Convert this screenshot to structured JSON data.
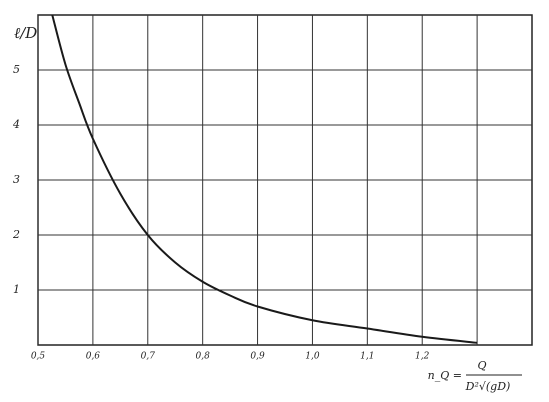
{
  "chart_data": {
    "type": "line",
    "y_label": "ℓ/D",
    "x_label": {
      "left": "n_Q =",
      "numerator": "Q",
      "denominator": "D²√(gD)"
    },
    "x": [
      0.526,
      0.55,
      0.575,
      0.6,
      0.65,
      0.7,
      0.75,
      0.8,
      0.85,
      0.9,
      1.0,
      1.1,
      1.2,
      1.3
    ],
    "series": [
      {
        "color": "#1a1a1a",
        "values": [
          6,
          5.1,
          4.4,
          3.75,
          2.75,
          2.0,
          1.5,
          1.15,
          0.9,
          0.7,
          0.45,
          0.3,
          0.15,
          0.04
        ]
      }
    ],
    "xlim": [
      0.5,
      1.4
    ],
    "ylim": [
      0,
      6
    ],
    "xticks": [
      {
        "value": 0.5,
        "label": "0,5"
      },
      {
        "value": 0.6,
        "label": "0,6"
      },
      {
        "value": 0.7,
        "label": "0,7"
      },
      {
        "value": 0.8,
        "label": "0,8"
      },
      {
        "value": 0.9,
        "label": "0,9"
      },
      {
        "value": 1.0,
        "label": "1,0"
      },
      {
        "value": 1.1,
        "label": "1,1"
      },
      {
        "value": 1.2,
        "label": "1,2"
      },
      {
        "value": 1.3,
        "label": null
      }
    ],
    "yticks": [
      1,
      2,
      3,
      4,
      5
    ],
    "grid": true
  }
}
